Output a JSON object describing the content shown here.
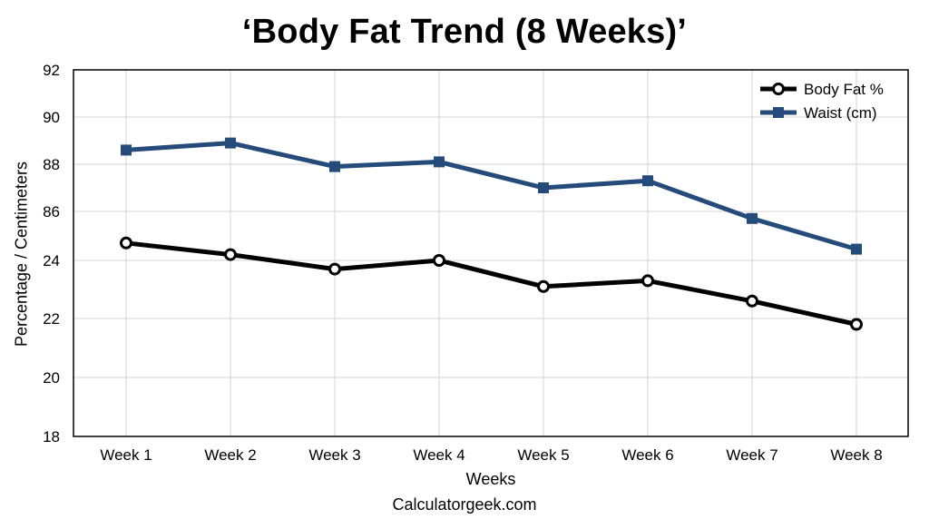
{
  "chart_data": {
    "type": "line",
    "title": "‘Body Fat Trend (8 Weeks)’",
    "xlabel": "Weeks",
    "ylabel": "Percentage / Centimeters",
    "source": "Calculatorgeek.com",
    "categories": [
      "Week 1",
      "Week 2",
      "Week 3",
      "Week 4",
      "Week 5",
      "Week 6",
      "Week 7",
      "Week 8"
    ],
    "y_ticks": [
      "92",
      "90",
      "88",
      "86",
      "24",
      "22",
      "20",
      "18"
    ],
    "grid": true,
    "legend_position": "top-right",
    "series": [
      {
        "name": "Body Fat %",
        "color": "#000000",
        "marker": "open-circle",
        "values": [
          24.6,
          24.2,
          23.7,
          24.0,
          23.1,
          23.3,
          22.6,
          21.8
        ]
      },
      {
        "name": "Waist (cm)",
        "color": "#254b7a",
        "marker": "square",
        "values": [
          88.6,
          88.9,
          87.9,
          88.1,
          87.0,
          87.3,
          85.7,
          84.4
        ]
      }
    ]
  }
}
